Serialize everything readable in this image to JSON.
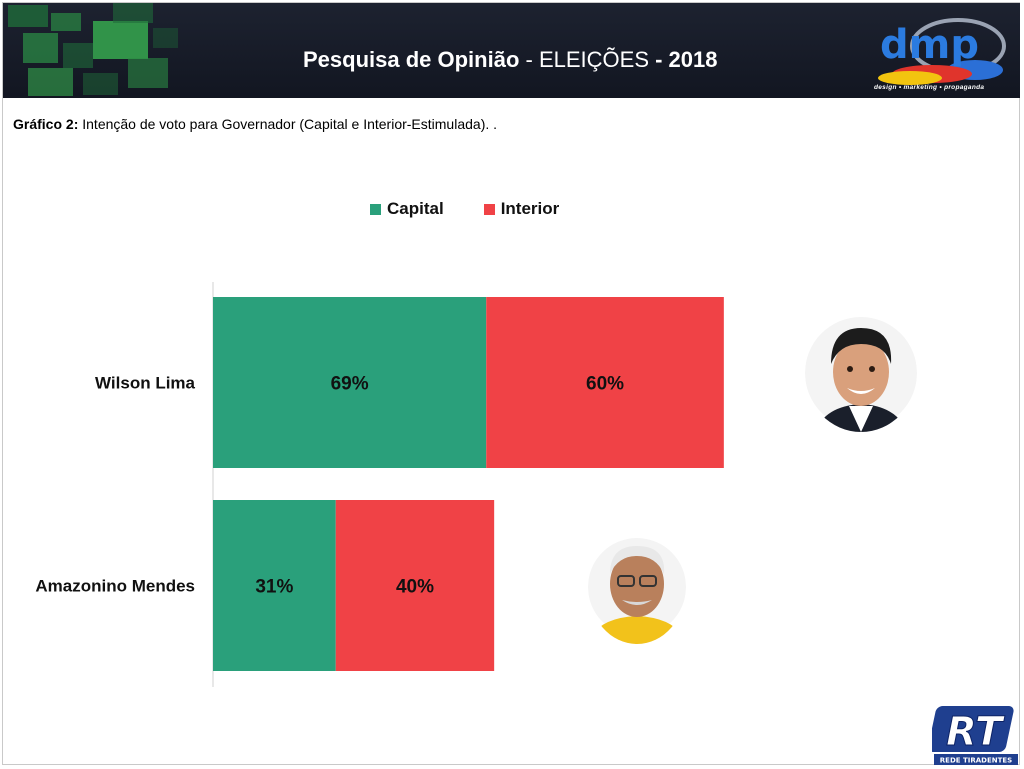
{
  "header": {
    "title_bold": "Pesquisa de Opinião",
    "title_sep": " - ",
    "title_normal": "ELEIÇÕES",
    "title_year": " - 2018",
    "logo_text": "dmp",
    "logo_tagline": "design • marketing • propaganda"
  },
  "caption": {
    "label": "Gráfico 2:",
    "text": " Intenção de voto para Governador (Capital e Interior-Estimulada). ."
  },
  "footer_logo": {
    "text": "RT",
    "subtitle": "REDE TIRADENTES"
  },
  "colors": {
    "capital": "#2aa07b",
    "interior": "#f04246"
  },
  "chart_data": {
    "type": "bar",
    "orientation": "horizontal",
    "stacked": true,
    "categories": [
      "Wilson Lima",
      "Amazonino Mendes"
    ],
    "series": [
      {
        "name": "Capital",
        "values": [
          69,
          31
        ],
        "labels": [
          "69%",
          "31%"
        ]
      },
      {
        "name": "Interior",
        "values": [
          60,
          40
        ],
        "labels": [
          "60%",
          "40%"
        ]
      }
    ],
    "legend": "top-center",
    "grid": false
  }
}
